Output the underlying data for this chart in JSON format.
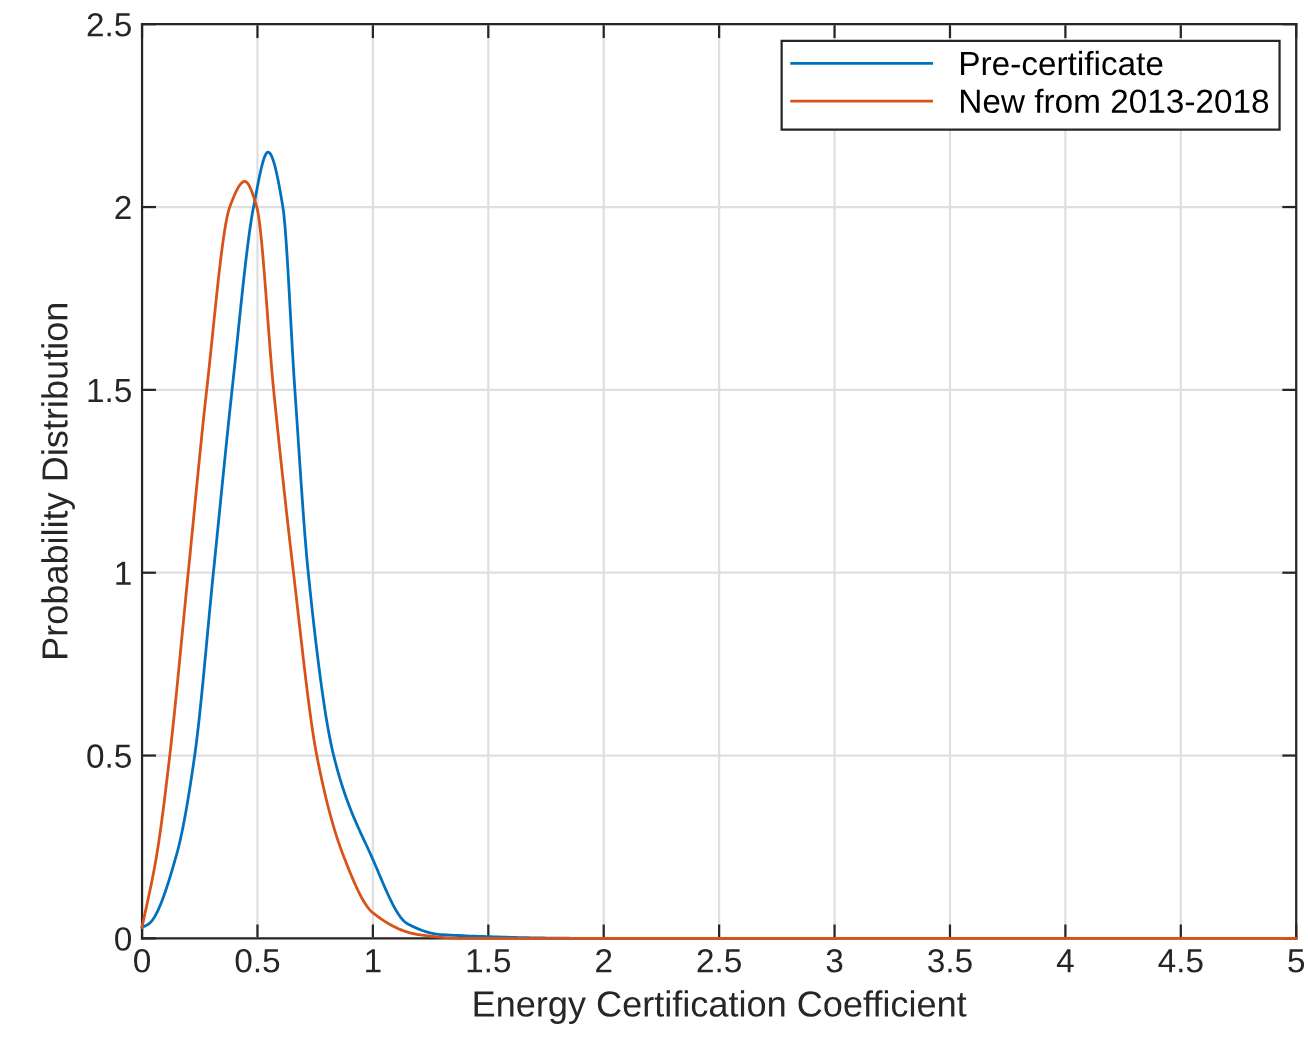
{
  "chart_data": {
    "type": "line",
    "xlabel": "Energy Certification Coefficient",
    "ylabel": "Probability Distribution",
    "series": [
      {
        "name": "Pre-certificate",
        "color": "#0072bd",
        "x": [
          0,
          0.03,
          0.15,
          0.228,
          0.309,
          0.39,
          0.483,
          0.546,
          0.61,
          0.662,
          0.72,
          0.83,
          0.99,
          1.15,
          1.3,
          2,
          3
        ],
        "values": [
          0.03,
          0.04,
          0.23,
          0.5,
          1.0,
          1.5,
          2.0,
          2.15,
          2.0,
          1.5,
          1.0,
          0.5,
          0.23,
          0.04,
          0.01,
          0,
          0
        ]
      },
      {
        "name": "New from 2013-2018",
        "color": "#d95319",
        "x": [
          0,
          0.064,
          0.12,
          0.2,
          0.28,
          0.38,
          0.445,
          0.497,
          0.57,
          0.656,
          0.757,
          0.87,
          1.0,
          1.2,
          1.4,
          2,
          3,
          4,
          5
        ],
        "values": [
          0.03,
          0.23,
          0.5,
          1.0,
          1.5,
          2.0,
          2.07,
          2.0,
          1.5,
          1.0,
          0.5,
          0.23,
          0.07,
          0.01,
          0,
          0,
          0,
          0,
          0
        ]
      }
    ],
    "xlim": [
      0,
      5
    ],
    "ylim": [
      0,
      2.5
    ],
    "xticks": [
      0,
      0.5,
      1,
      1.5,
      2,
      2.5,
      3,
      3.5,
      4,
      4.5,
      5
    ],
    "yticks": [
      0,
      0.5,
      1,
      1.5,
      2,
      2.5
    ],
    "grid": true,
    "legend": "top right",
    "marker": "none",
    "line_style": "solid"
  }
}
